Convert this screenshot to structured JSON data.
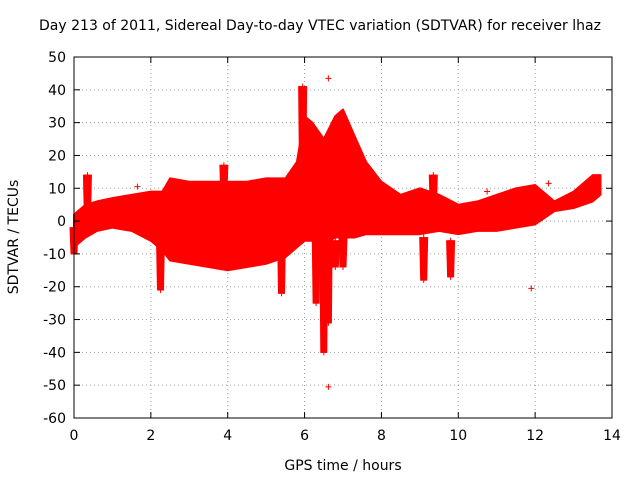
{
  "chart_data": {
    "type": "scatter",
    "title": "Day 213 of 2011, Sidereal Day-to-day VTEC variation (SDTVAR) for receiver lhaz",
    "xlabel": "GPS time / hours",
    "ylabel": "SDTVAR / TECUs",
    "xlim": [
      0,
      14
    ],
    "ylim": [
      -60,
      50
    ],
    "x_ticks": [
      0,
      2,
      4,
      6,
      8,
      10,
      12,
      14
    ],
    "y_ticks": [
      -60,
      -50,
      -40,
      -30,
      -20,
      -10,
      0,
      10,
      20,
      30,
      40,
      50
    ],
    "grid": true,
    "marker": "+",
    "color": "#ff0000",
    "band_estimated": {
      "x": [
        0.0,
        0.3,
        0.6,
        1.0,
        1.5,
        2.0,
        2.3,
        2.5,
        3.0,
        3.5,
        4.0,
        4.5,
        5.0,
        5.5,
        5.8,
        6.0,
        6.2,
        6.5,
        6.8,
        7.0,
        7.3,
        7.6,
        8.0,
        8.5,
        9.0,
        9.5,
        10.0,
        10.5,
        11.0,
        11.5,
        12.0,
        12.5,
        13.0,
        13.5,
        13.7
      ],
      "upper": [
        2,
        5,
        6,
        7,
        8,
        9,
        9,
        13,
        12,
        12,
        12,
        12,
        13,
        13,
        18,
        32,
        30,
        25,
        32,
        34,
        26,
        18,
        12,
        8,
        10,
        8,
        5,
        6,
        8,
        10,
        11,
        6,
        9,
        14,
        14
      ],
      "lower": [
        -8,
        -5,
        -3,
        -2,
        -3,
        -6,
        -9,
        -12,
        -13,
        -14,
        -15,
        -14,
        -13,
        -11,
        -8,
        -6,
        -6,
        -7,
        -5,
        -5,
        -5,
        -4,
        -4,
        -4,
        -4,
        -3,
        -4,
        -3,
        -3,
        -2,
        -1,
        3,
        4,
        6,
        8
      ]
    },
    "spikes_estimated": [
      {
        "x": 0.0,
        "top": -2,
        "bottom": -10
      },
      {
        "x": 0.35,
        "top": 14,
        "bottom": 0
      },
      {
        "x": 2.25,
        "top": -5,
        "bottom": -21
      },
      {
        "x": 3.9,
        "top": 17,
        "bottom": 8
      },
      {
        "x": 5.4,
        "top": -3,
        "bottom": -22
      },
      {
        "x": 5.95,
        "top": 41,
        "bottom": 10
      },
      {
        "x": 6.3,
        "top": -2,
        "bottom": -25
      },
      {
        "x": 6.5,
        "top": -3,
        "bottom": -40
      },
      {
        "x": 6.62,
        "top": 2,
        "bottom": -31
      },
      {
        "x": 6.8,
        "top": -6,
        "bottom": -14
      },
      {
        "x": 7.0,
        "top": -5,
        "bottom": -14
      },
      {
        "x": 9.1,
        "top": -5,
        "bottom": -18
      },
      {
        "x": 9.35,
        "top": 14,
        "bottom": 2
      },
      {
        "x": 9.8,
        "top": -6,
        "bottom": -17
      }
    ],
    "outliers": [
      {
        "x": 6.62,
        "y": 43.5
      },
      {
        "x": 6.62,
        "y": -50.5
      },
      {
        "x": 11.9,
        "y": -20.5
      },
      {
        "x": 12.35,
        "y": 11.5
      },
      {
        "x": 10.75,
        "y": 9
      },
      {
        "x": 1.65,
        "y": 10.5
      }
    ]
  }
}
